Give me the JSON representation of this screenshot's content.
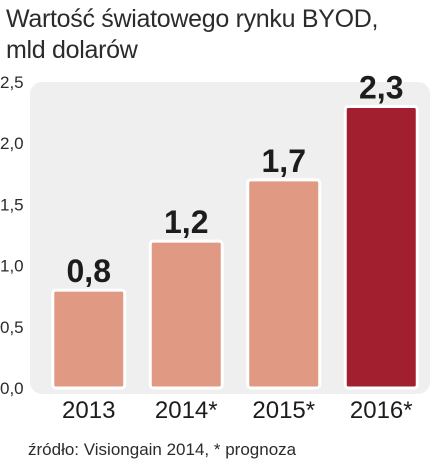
{
  "chart_data": {
    "type": "bar",
    "title_lines": [
      "Wartość światowego rynku BYOD,",
      "mld dolarów"
    ],
    "categories": [
      "2013",
      "2014*",
      "2015*",
      "2016*"
    ],
    "values": [
      0.8,
      1.2,
      1.7,
      2.3
    ],
    "value_labels": [
      "0,8",
      "1,2",
      "1,7",
      "2,3"
    ],
    "ylim": [
      0,
      2.5
    ],
    "yticks": [
      0,
      0.5,
      1.0,
      1.5,
      2.0,
      2.5
    ],
    "ytick_labels": [
      "0,0",
      "0,5",
      "1,0",
      "1,5",
      "2,0",
      "2,5"
    ],
    "grid": false,
    "colors": {
      "bar": "#e09a84",
      "highlight_bar": "#a11f2f",
      "panel": "#efefef",
      "bar_outline": "#ffffff"
    },
    "highlight_index": 3
  },
  "source": "źródło: Visiongain 2014, * prognoza"
}
